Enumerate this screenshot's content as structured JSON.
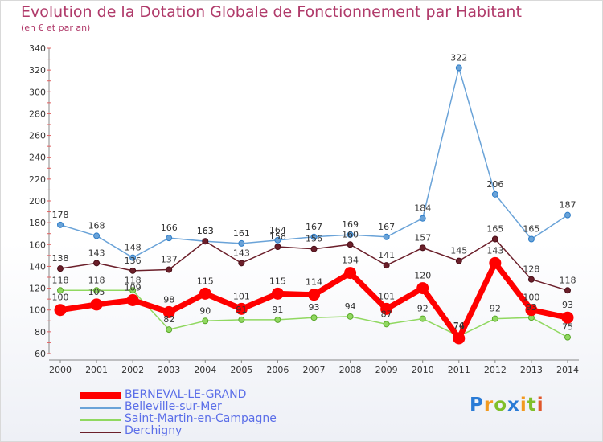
{
  "chart_data": {
    "type": "line",
    "title": "Evolution de la Dotation Globale de Fonctionnement par Habitant",
    "subtitle": "(en € et par an)",
    "xlabel": "",
    "ylabel": "",
    "categories": [
      "2000",
      "2001",
      "2002",
      "2003",
      "2004",
      "2005",
      "2006",
      "2007",
      "2008",
      "2009",
      "2010",
      "2011",
      "2012",
      "2013",
      "2014"
    ],
    "yticks": [
      60,
      80,
      100,
      120,
      140,
      160,
      180,
      200,
      220,
      240,
      260,
      280,
      300,
      320,
      340
    ],
    "ylim": [
      60,
      340
    ],
    "grid": false,
    "legend_position": "bottom-left",
    "series": [
      {
        "name": "Belleville-sur-Mer",
        "color": "#6aa3d8",
        "values": [
          178,
          168,
          148,
          166,
          163,
          161,
          164,
          167,
          169,
          167,
          184,
          322,
          206,
          165,
          187
        ],
        "labels": [
          "178",
          "168",
          "148",
          "166",
          "163",
          "161",
          "164",
          "167",
          "169",
          "167",
          "184",
          "322",
          "206",
          "165",
          "187"
        ]
      },
      {
        "name": "Derchigny",
        "color": "#6b1f2a",
        "values": [
          138,
          143,
          136,
          137,
          163,
          143,
          158,
          156,
          160,
          141,
          157,
          145,
          165,
          128,
          118
        ],
        "labels": [
          "138",
          "143",
          "136",
          "137",
          "163",
          "143",
          "158",
          "156",
          "160",
          "141",
          "157",
          "145",
          "165",
          "128",
          "118"
        ]
      },
      {
        "name": "Saint-Martin-en-Campagne",
        "color": "#90d860",
        "values": [
          118,
          118,
          118,
          82,
          90,
          91,
          91,
          93,
          94,
          87,
          92,
          76,
          92,
          93,
          75
        ],
        "labels": [
          "118",
          "118",
          "118",
          "82",
          "90",
          "91",
          "91",
          "93",
          "94",
          "87",
          "92",
          "76",
          "92",
          "93",
          "75"
        ]
      },
      {
        "name": "BERNEVAL-LE-GRAND",
        "color": "#ff0000",
        "values": [
          100,
          105,
          109,
          98,
          115,
          101,
          115,
          114,
          134,
          101,
          120,
          74,
          143,
          100,
          93
        ],
        "labels": [
          "100",
          "105",
          "109",
          "98",
          "115",
          "101",
          "115",
          "114",
          "134",
          "101",
          "120",
          "74",
          "143",
          "100",
          "93"
        ]
      }
    ]
  },
  "legend": {
    "items": [
      {
        "label": "BERNEVAL-LE-GRAND",
        "color": "#ff0000"
      },
      {
        "label": "Belleville-sur-Mer",
        "color": "#6aa3d8"
      },
      {
        "label": "Saint-Martin-en-Campagne",
        "color": "#90d860"
      },
      {
        "label": "Derchigny",
        "color": "#6b1f2a"
      }
    ]
  },
  "logo": {
    "text": "Proxiti"
  }
}
